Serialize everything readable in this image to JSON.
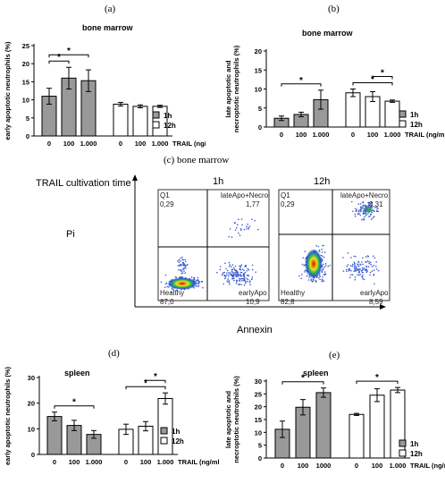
{
  "panels": {
    "a": {
      "letter": "(a)",
      "title": "bone marrow"
    },
    "b": {
      "letter": "(b)",
      "title": "bone marrow"
    },
    "c": {
      "letter": "(c) bone marrow"
    },
    "d": {
      "letter": "(d)",
      "title": "spleen"
    },
    "e": {
      "letter": "(e)",
      "title": "spleen"
    }
  },
  "flow": {
    "row_title": "TRAIL cultivation time",
    "y_axis": "Pi",
    "x_axis": "Annexin",
    "plot_1h": {
      "header": "1h",
      "q1": "Q1",
      "q1_val": "0,29",
      "late": "lateApo+Necro",
      "late_val": "1,77",
      "healthy": "Healthy",
      "healthy_val": "87,0",
      "early": "earlyApo",
      "early_val": "10,9"
    },
    "plot_12h": {
      "header": "12h",
      "q1": "Q1",
      "q1_val": "0,29",
      "late": "lateApo+Necro",
      "late_val": "8,31",
      "healthy": "Healthy",
      "healthy_val": "82,8",
      "early": "earlyApo",
      "early_val": "8,59"
    }
  },
  "colors": {
    "group_1h": "#999999",
    "group_12h": "#ffffff"
  },
  "chart_data": [
    {
      "id": "a",
      "type": "bar",
      "ylabel": "early apoptotic neutrophils (%)",
      "xlabel": "TRAIL (ng/ml)",
      "ylim": [
        0,
        25
      ],
      "yticks": [
        0,
        5,
        10,
        15,
        20,
        25
      ],
      "categories": [
        "0",
        "100",
        "1.000",
        "0",
        "100",
        "1.000"
      ],
      "groups": [
        "1h",
        "1h",
        "1h",
        "12h",
        "12h",
        "12h"
      ],
      "values": [
        11.0,
        16.0,
        15.3,
        8.8,
        8.2,
        8.2
      ],
      "errors": [
        2.2,
        3.0,
        3.0,
        0.5,
        0.4,
        0.3
      ],
      "legend": [
        "1h",
        "12h"
      ],
      "significance": [
        {
          "bars": [
            0,
            1
          ],
          "label": "*"
        },
        {
          "bars": [
            0,
            2
          ],
          "label": "*"
        }
      ]
    },
    {
      "id": "b",
      "type": "bar",
      "ylabel": "late apoptotic and necroptotic neutrophils (%)",
      "xlabel": "TRAIL (ng/ml)",
      "ylim": [
        0,
        20
      ],
      "yticks": [
        0,
        5,
        10,
        15,
        20
      ],
      "categories": [
        "0",
        "100",
        "1.000",
        "0",
        "100",
        "1.000"
      ],
      "groups": [
        "1h",
        "1h",
        "1h",
        "12h",
        "12h",
        "12h"
      ],
      "values": [
        2.3,
        3.3,
        7.2,
        9.0,
        8.0,
        6.8
      ],
      "errors": [
        0.6,
        0.6,
        2.5,
        1.0,
        1.3,
        0.3
      ],
      "legend": [
        "1h",
        "12h"
      ],
      "significance": [
        {
          "bars": [
            0,
            2
          ],
          "label": "*"
        },
        {
          "bars": [
            3,
            5
          ],
          "label": "*"
        },
        {
          "bars": [
            4,
            5
          ],
          "label": "*"
        }
      ]
    },
    {
      "id": "d",
      "type": "bar",
      "ylabel": "early apoptotic neutrophils (%)",
      "xlabel": "TRAIL (ng/ml)",
      "ylim": [
        0,
        30
      ],
      "yticks": [
        0,
        10,
        20,
        30
      ],
      "categories": [
        "0",
        "100",
        "1.000",
        "0",
        "100",
        "1.000"
      ],
      "groups": [
        "1h",
        "1h",
        "1h",
        "12h",
        "12h",
        "12h"
      ],
      "values": [
        14.8,
        11.3,
        7.8,
        9.8,
        11.0,
        21.8
      ],
      "errors": [
        1.7,
        2.0,
        1.5,
        2.0,
        1.8,
        2.2
      ],
      "legend": [
        "1h",
        "12h"
      ],
      "significance": [
        {
          "bars": [
            0,
            2
          ],
          "label": "*"
        },
        {
          "bars": [
            3,
            5
          ],
          "label": "*"
        },
        {
          "bars": [
            4,
            5
          ],
          "label": "*"
        }
      ]
    },
    {
      "id": "e",
      "type": "bar",
      "ylabel": "late apoptotic and necroptotic neutrophils (%)",
      "xlabel": "TRAIL (ng/ml)",
      "ylim": [
        0,
        30
      ],
      "yticks": [
        0,
        5,
        10,
        15,
        20,
        25,
        30
      ],
      "categories": [
        "0",
        "100",
        "1000",
        "0",
        "100",
        "1.000"
      ],
      "groups": [
        "1h",
        "1h",
        "1h",
        "12h",
        "12h",
        "12h"
      ],
      "values": [
        11.2,
        19.8,
        25.5,
        17.0,
        24.5,
        26.5
      ],
      "errors": [
        3.2,
        3.0,
        1.8,
        0.4,
        2.5,
        1.0
      ],
      "legend": [
        "1h",
        "12h"
      ],
      "significance": [
        {
          "bars": [
            0,
            2
          ],
          "label": "*"
        },
        {
          "bars": [
            3,
            5
          ],
          "label": "*"
        }
      ]
    }
  ]
}
